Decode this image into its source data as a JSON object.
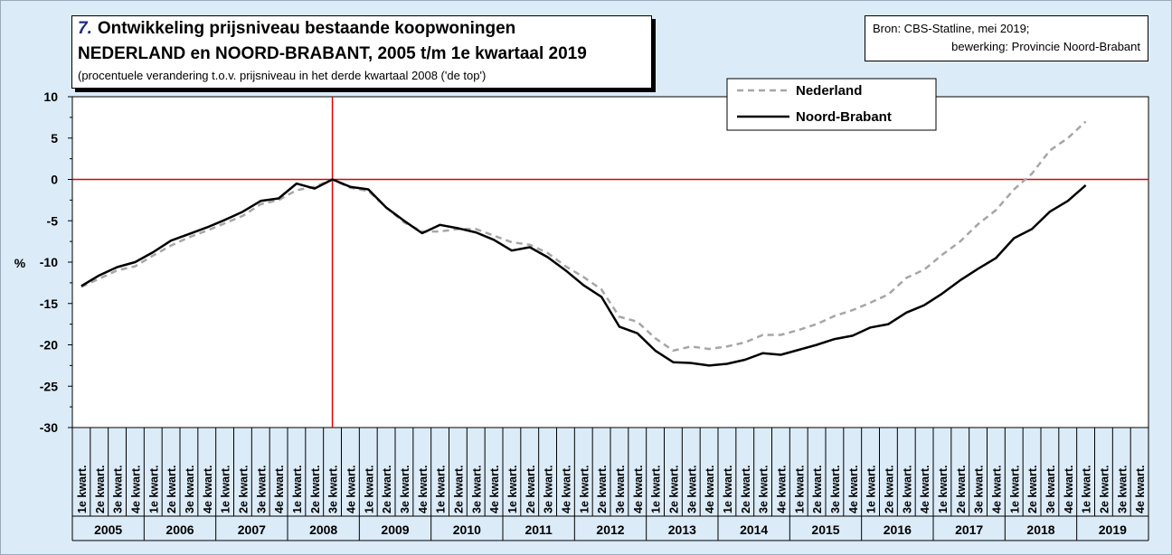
{
  "header": {
    "number": "7.",
    "title_line1": "Ontwikkeling prijsniveau bestaande koopwoningen",
    "title_line2": "NEDERLAND en NOORD-BRABANT, 2005 t/m 1e kwartaal 2019",
    "subtitle": "(procentuele verandering t.o.v. prijsniveau in het derde kwartaal 2008 ('de top')"
  },
  "source": {
    "line1": "Bron: CBS-Statline, mei 2019;",
    "line2": "bewerking: Provincie Noord-Brabant"
  },
  "colors": {
    "background": "#dcebf8",
    "nederland": "#a6a6a6",
    "noord_brabant": "#000000",
    "reference": "#e00000"
  },
  "chart_data": {
    "type": "line",
    "ylabel": "%",
    "ylim": [
      -30,
      10
    ],
    "yticks": [
      "10",
      "5",
      "0",
      "-5",
      "-10",
      "-15",
      "-20",
      "-25",
      "-30"
    ],
    "grid": false,
    "legend_position": "top-center",
    "quarter_labels": [
      "1e kwart.",
      "2e kwart.",
      "3e kwart.",
      "4e kwart."
    ],
    "years": [
      "2005",
      "2006",
      "2007",
      "2008",
      "2009",
      "2010",
      "2011",
      "2012",
      "2013",
      "2014",
      "2015",
      "2016",
      "2017",
      "2018",
      "2019"
    ],
    "reference_lines": {
      "horizontal_y": 0,
      "vertical_at": "2008 3e kwart."
    },
    "series": [
      {
        "name": "Nederland",
        "style": "dashed",
        "values": [
          -13.0,
          -12.0,
          -11.0,
          -10.5,
          -9.2,
          -8.0,
          -7.0,
          -6.2,
          -5.3,
          -4.4,
          -3.0,
          -2.5,
          -1.3,
          -0.9,
          0.0,
          -1.0,
          -1.4,
          -3.4,
          -5.2,
          -6.3,
          -6.3,
          -6.0,
          -6.0,
          -6.8,
          -7.6,
          -7.9,
          -8.9,
          -10.5,
          -11.8,
          -13.3,
          -16.6,
          -17.2,
          -19.2,
          -20.7,
          -20.2,
          -20.5,
          -20.2,
          -19.7,
          -18.8,
          -18.8,
          -18.2,
          -17.5,
          -16.5,
          -15.8,
          -14.9,
          -13.9,
          -11.9,
          -10.9,
          -9.1,
          -7.5,
          -5.4,
          -3.7,
          -1.2,
          0.7,
          3.5,
          5.0,
          7.0
        ]
      },
      {
        "name": "Noord-Brabant",
        "style": "solid",
        "values": [
          -12.9,
          -11.6,
          -10.6,
          -10.0,
          -8.8,
          -7.4,
          -6.6,
          -5.8,
          -4.9,
          -3.9,
          -2.6,
          -2.3,
          -0.5,
          -1.1,
          0.0,
          -0.9,
          -1.2,
          -3.4,
          -5.0,
          -6.5,
          -5.5,
          -5.9,
          -6.4,
          -7.3,
          -8.6,
          -8.2,
          -9.4,
          -11.0,
          -12.8,
          -14.2,
          -17.8,
          -18.6,
          -20.7,
          -22.1,
          -22.2,
          -22.5,
          -22.3,
          -21.8,
          -21.0,
          -21.2,
          -20.6,
          -20.0,
          -19.3,
          -18.9,
          -17.9,
          -17.5,
          -16.1,
          -15.2,
          -13.8,
          -12.2,
          -10.8,
          -9.5,
          -7.1,
          -6.0,
          -3.9,
          -2.6,
          -0.7
        ]
      }
    ]
  }
}
